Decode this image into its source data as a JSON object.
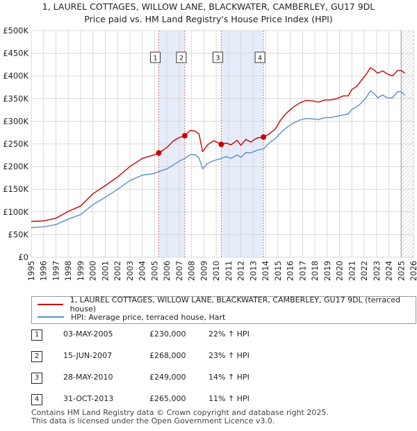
{
  "title_line1": "1, LAUREL COTTAGES, WILLOW LANE, BLACKWATER, CAMBERLEY, GU17 9DL",
  "title_line2": "Price paid vs. HM Land Registry's House Price Index (HPI)",
  "chart_data": {
    "type": "line",
    "xlim": [
      1995,
      2026
    ],
    "ylim": [
      0,
      500000
    ],
    "y_ticks": [
      0,
      50000,
      100000,
      150000,
      200000,
      250000,
      300000,
      350000,
      400000,
      450000,
      500000
    ],
    "y_tick_labels": [
      "£0",
      "£50K",
      "£100K",
      "£150K",
      "£200K",
      "£250K",
      "£300K",
      "£350K",
      "£400K",
      "£450K",
      "£500K"
    ],
    "x_ticks": [
      1995,
      1996,
      1997,
      1998,
      1999,
      2000,
      2001,
      2002,
      2003,
      2004,
      2005,
      2006,
      2007,
      2008,
      2009,
      2010,
      2011,
      2012,
      2013,
      2014,
      2015,
      2016,
      2017,
      2018,
      2019,
      2020,
      2021,
      2022,
      2023,
      2024,
      2025,
      2026
    ],
    "grid": true,
    "shaded_bands": [
      [
        2005.34,
        2007.45
      ],
      [
        2010.41,
        2013.83
      ]
    ],
    "hatched_from": 2025.0,
    "series": [
      {
        "name": "1, LAUREL COTTAGES, WILLOW LANE, BLACKWATER, CAMBERLEY, GU17 9DL (terraced house)",
        "color": "#cc0000",
        "points": [
          [
            1995.0,
            79000
          ],
          [
            1996.0,
            80000
          ],
          [
            1997.0,
            86000
          ],
          [
            1998.0,
            101000
          ],
          [
            1999.0,
            113000
          ],
          [
            2000.0,
            140000
          ],
          [
            2001.0,
            158000
          ],
          [
            2002.0,
            177000
          ],
          [
            2003.0,
            200000
          ],
          [
            2004.0,
            218000
          ],
          [
            2005.0,
            226000
          ],
          [
            2005.34,
            230000
          ],
          [
            2006.0,
            242000
          ],
          [
            2006.5,
            256000
          ],
          [
            2007.0,
            264000
          ],
          [
            2007.45,
            268000
          ],
          [
            2007.9,
            280000
          ],
          [
            2008.3,
            278000
          ],
          [
            2008.6,
            272000
          ],
          [
            2008.9,
            233000
          ],
          [
            2009.3,
            248000
          ],
          [
            2009.8,
            257000
          ],
          [
            2010.41,
            249000
          ],
          [
            2010.8,
            252000
          ],
          [
            2011.2,
            248000
          ],
          [
            2011.7,
            258000
          ],
          [
            2012.0,
            247000
          ],
          [
            2012.4,
            260000
          ],
          [
            2012.8,
            254000
          ],
          [
            2013.3,
            263000
          ],
          [
            2013.83,
            265000
          ],
          [
            2014.3,
            272000
          ],
          [
            2014.8,
            283000
          ],
          [
            2015.2,
            302000
          ],
          [
            2015.7,
            318000
          ],
          [
            2016.2,
            330000
          ],
          [
            2016.8,
            341000
          ],
          [
            2017.3,
            346000
          ],
          [
            2017.8,
            345000
          ],
          [
            2018.3,
            342000
          ],
          [
            2018.8,
            347000
          ],
          [
            2019.3,
            347000
          ],
          [
            2019.8,
            350000
          ],
          [
            2020.3,
            356000
          ],
          [
            2020.7,
            356000
          ],
          [
            2021.0,
            370000
          ],
          [
            2021.4,
            377000
          ],
          [
            2021.8,
            391000
          ],
          [
            2022.2,
            405000
          ],
          [
            2022.5,
            418000
          ],
          [
            2022.8,
            413000
          ],
          [
            2023.1,
            406000
          ],
          [
            2023.5,
            411000
          ],
          [
            2023.9,
            404000
          ],
          [
            2024.3,
            400000
          ],
          [
            2024.7,
            412000
          ],
          [
            2025.0,
            412000
          ],
          [
            2025.3,
            406000
          ]
        ]
      },
      {
        "name": "HPI: Average price, terraced house, Hart",
        "color": "#5b8fcc",
        "points": [
          [
            1995.0,
            65000
          ],
          [
            1996.0,
            67000
          ],
          [
            1997.0,
            72000
          ],
          [
            1998.0,
            84000
          ],
          [
            1999.0,
            94000
          ],
          [
            2000.0,
            116000
          ],
          [
            2001.0,
            132000
          ],
          [
            2002.0,
            150000
          ],
          [
            2003.0,
            169000
          ],
          [
            2004.0,
            181000
          ],
          [
            2005.0,
            185000
          ],
          [
            2005.34,
            189000
          ],
          [
            2006.0,
            195000
          ],
          [
            2006.5,
            203000
          ],
          [
            2007.0,
            212000
          ],
          [
            2007.45,
            218000
          ],
          [
            2007.9,
            226000
          ],
          [
            2008.3,
            226000
          ],
          [
            2008.6,
            219000
          ],
          [
            2008.9,
            195000
          ],
          [
            2009.3,
            207000
          ],
          [
            2009.8,
            213000
          ],
          [
            2010.41,
            218000
          ],
          [
            2010.8,
            222000
          ],
          [
            2011.2,
            218000
          ],
          [
            2011.7,
            226000
          ],
          [
            2012.0,
            220000
          ],
          [
            2012.4,
            231000
          ],
          [
            2012.8,
            230000
          ],
          [
            2013.3,
            236000
          ],
          [
            2013.83,
            239000
          ],
          [
            2014.3,
            252000
          ],
          [
            2014.8,
            262000
          ],
          [
            2015.2,
            274000
          ],
          [
            2015.7,
            286000
          ],
          [
            2016.2,
            295000
          ],
          [
            2016.8,
            303000
          ],
          [
            2017.3,
            306000
          ],
          [
            2017.8,
            305000
          ],
          [
            2018.3,
            304000
          ],
          [
            2018.8,
            308000
          ],
          [
            2019.3,
            308000
          ],
          [
            2019.8,
            311000
          ],
          [
            2020.3,
            314000
          ],
          [
            2020.7,
            316000
          ],
          [
            2021.0,
            326000
          ],
          [
            2021.4,
            332000
          ],
          [
            2021.8,
            341000
          ],
          [
            2022.2,
            354000
          ],
          [
            2022.5,
            367000
          ],
          [
            2022.8,
            361000
          ],
          [
            2023.1,
            352000
          ],
          [
            2023.5,
            358000
          ],
          [
            2023.9,
            351000
          ],
          [
            2024.3,
            352000
          ],
          [
            2024.7,
            365000
          ],
          [
            2025.0,
            365000
          ],
          [
            2025.3,
            357000
          ]
        ]
      }
    ],
    "sales": [
      {
        "num": "1",
        "x": 2005.34,
        "y": 230000
      },
      {
        "num": "2",
        "x": 2007.45,
        "y": 268000
      },
      {
        "num": "3",
        "x": 2010.41,
        "y": 249000
      },
      {
        "num": "4",
        "x": 2013.83,
        "y": 265000
      }
    ]
  },
  "legend": {
    "series1_label": "1, LAUREL COTTAGES, WILLOW LANE, BLACKWATER, CAMBERLEY, GU17 9DL (terraced house)",
    "series2_label": "HPI: Average price, terraced house, Hart"
  },
  "sales_table": [
    {
      "num": "1",
      "date": "03-MAY-2005",
      "price": "£230,000",
      "hpi": "22% ↑ HPI"
    },
    {
      "num": "2",
      "date": "15-JUN-2007",
      "price": "£268,000",
      "hpi": "23% ↑ HPI"
    },
    {
      "num": "3",
      "date": "28-MAY-2010",
      "price": "£249,000",
      "hpi": "14% ↑ HPI"
    },
    {
      "num": "4",
      "date": "31-OCT-2013",
      "price": "£265,000",
      "hpi": "11% ↑ HPI"
    }
  ],
  "footer_line1": "Contains HM Land Registry data © Crown copyright and database right 2025.",
  "footer_line2": "This data is licensed under the Open Government Licence v3.0."
}
